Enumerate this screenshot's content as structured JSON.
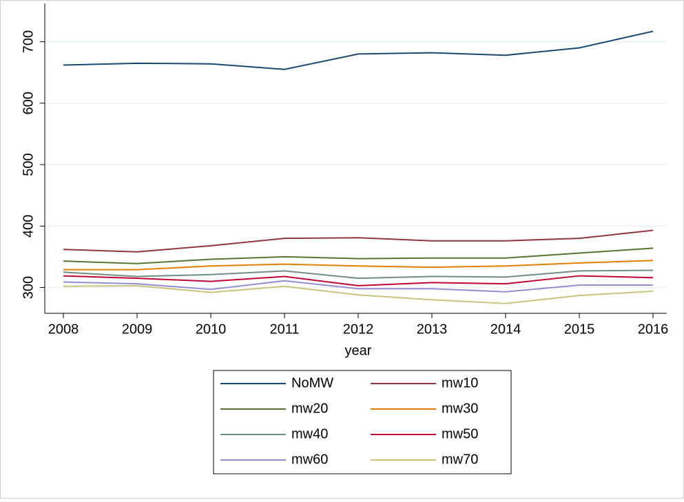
{
  "chart_data": {
    "type": "line",
    "x_label": "year",
    "x": [
      2008,
      2009,
      2010,
      2011,
      2012,
      2013,
      2014,
      2015,
      2016
    ],
    "xlim": [
      2008,
      2016
    ],
    "xticks": [
      2008,
      2009,
      2010,
      2011,
      2012,
      2013,
      2014,
      2015,
      2016
    ],
    "ylim": [
      258,
      741
    ],
    "yticks": [
      300,
      400,
      500,
      600,
      700
    ],
    "grid": true,
    "series": [
      {
        "name": "NoMW",
        "color": "#1a476f",
        "values": [
          662,
          665,
          664,
          655,
          680,
          682,
          678,
          690,
          717
        ]
      },
      {
        "name": "mw10",
        "color": "#90353b",
        "values": [
          362,
          358,
          368,
          380,
          381,
          376,
          376,
          380,
          393
        ]
      },
      {
        "name": "mw20",
        "color": "#55752f",
        "values": [
          343,
          339,
          346,
          350,
          347,
          348,
          348,
          356,
          364
        ]
      },
      {
        "name": "mw30",
        "color": "#e37e00",
        "values": [
          329,
          329,
          335,
          338,
          335,
          333,
          335,
          340,
          344
        ]
      },
      {
        "name": "mw40",
        "color": "#6e8e84",
        "values": [
          325,
          318,
          321,
          327,
          315,
          318,
          317,
          327,
          328
        ]
      },
      {
        "name": "mw50",
        "color": "#c10534",
        "values": [
          319,
          315,
          310,
          318,
          303,
          308,
          306,
          319,
          316
        ]
      },
      {
        "name": "mw60",
        "color": "#938dd2",
        "values": [
          309,
          306,
          297,
          311,
          298,
          298,
          293,
          304,
          304
        ]
      },
      {
        "name": "mw70",
        "color": "#cac27e",
        "values": [
          302,
          303,
          292,
          302,
          288,
          280,
          274,
          287,
          294
        ]
      }
    ]
  }
}
